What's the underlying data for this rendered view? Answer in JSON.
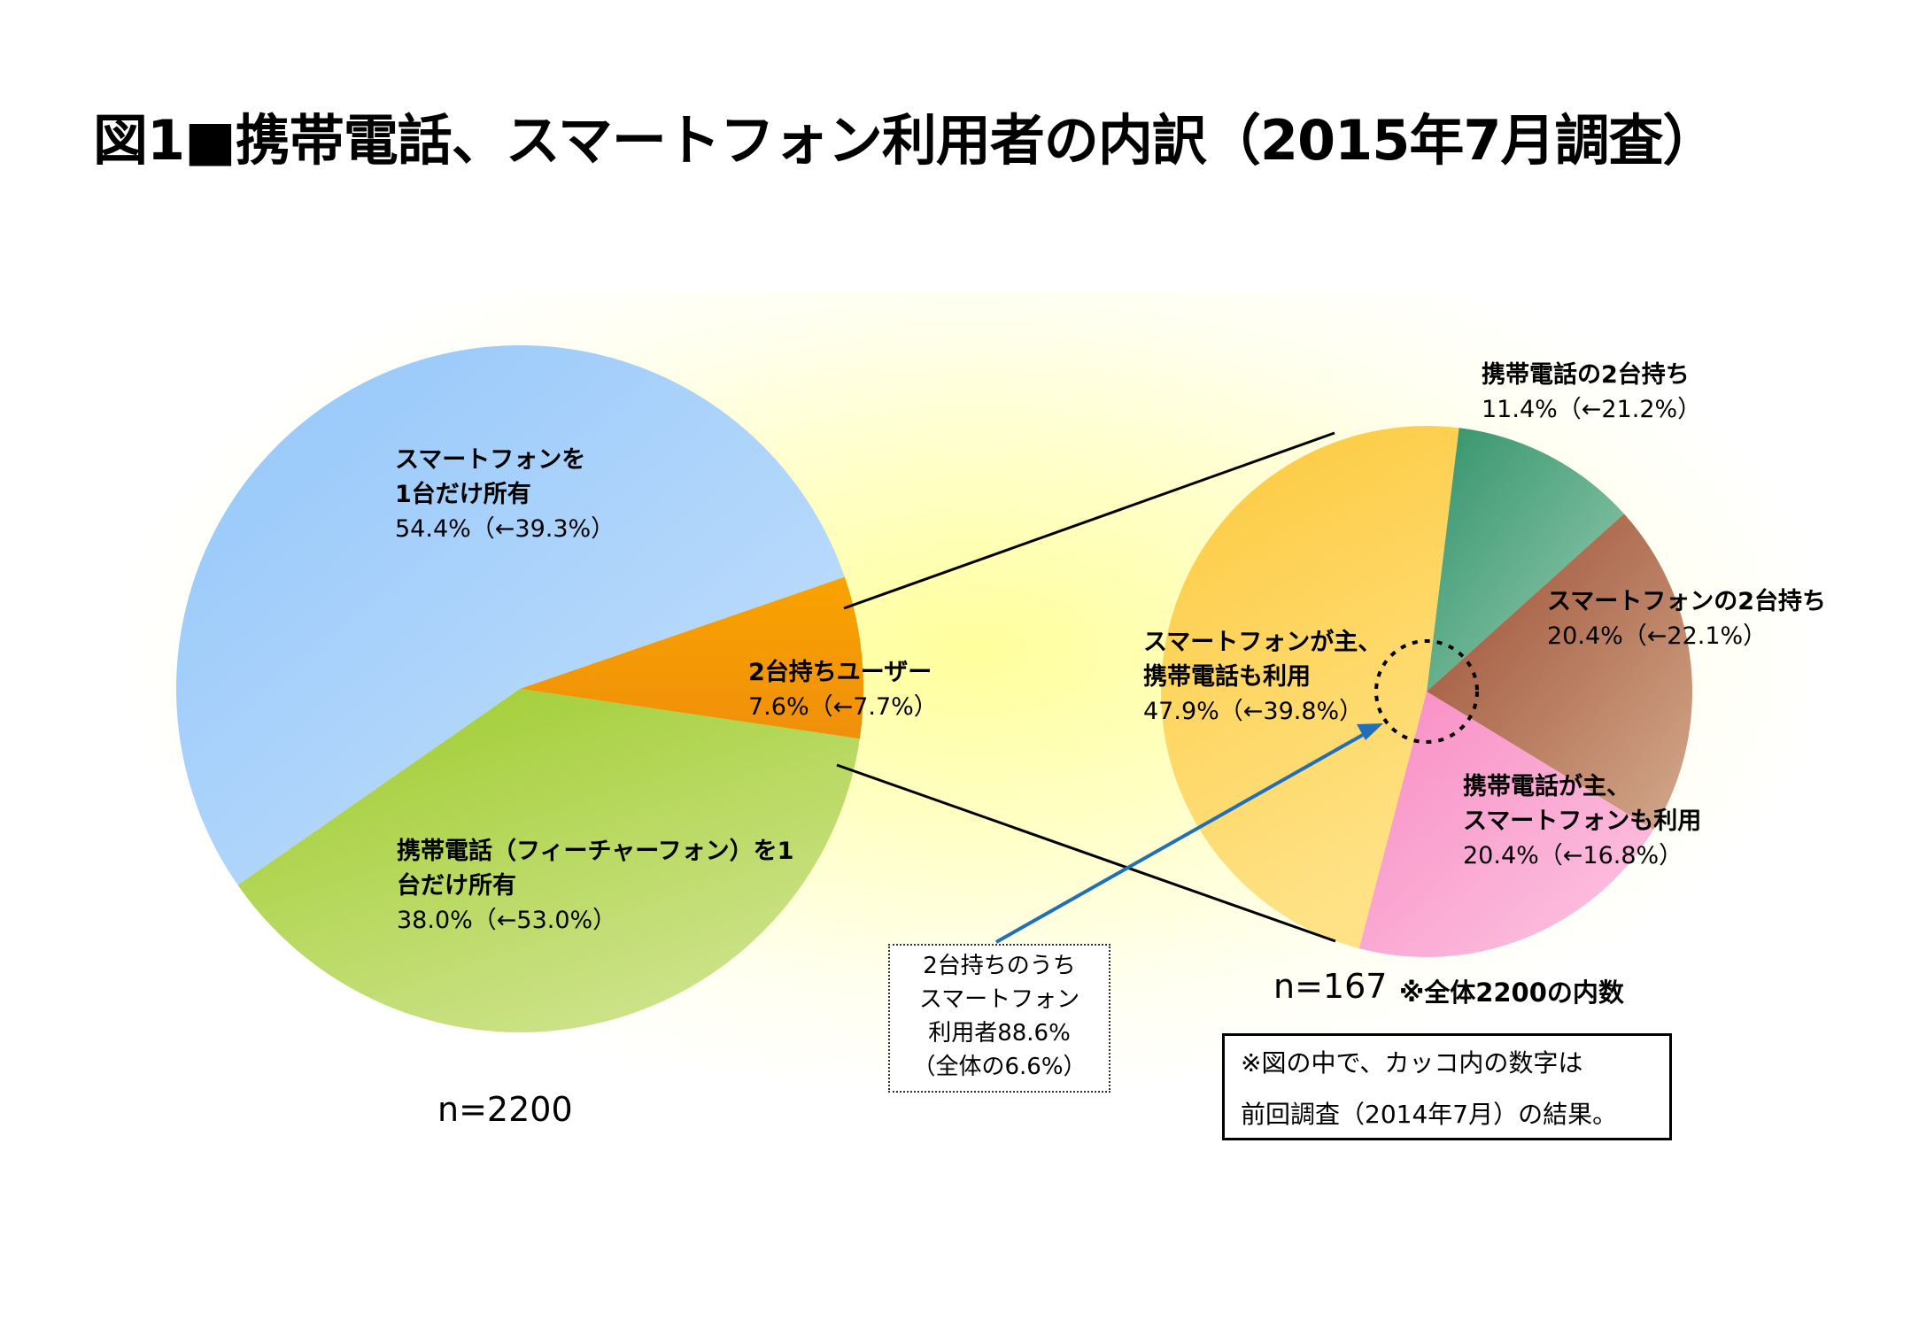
{
  "title": "図1■携帯電話、スマートフォン利用者の内訳（2015年7月調査）",
  "chart_data": [
    {
      "type": "pie",
      "n_label": "n=2200",
      "slices": [
        {
          "name": "スマートフォンを1台だけ所有",
          "label_lines": [
            "スマートフォンを",
            "1台だけ所有"
          ],
          "value": 54.4,
          "value_text": "54.4%（←39.3%）",
          "previous": 39.3,
          "color": "#a9d1fb"
        },
        {
          "name": "2台持ちユーザー",
          "label_lines": [
            "2台持ちユーザー"
          ],
          "value": 7.6,
          "value_text": "7.6%（←7.7%）",
          "previous": 7.7,
          "color": "#f39a0b"
        },
        {
          "name": "携帯電話（フィーチャーフォン）を1台だけ所有",
          "label_lines": [
            "携帯電話（フィーチャーフォン）を1",
            "台だけ所有"
          ],
          "value": 38.0,
          "value_text": "38.0%（←53.0%）",
          "previous": 53.0,
          "color": "#b2d454"
        }
      ]
    },
    {
      "type": "pie",
      "n_label": "n=167",
      "note": "※全体2200の内数",
      "slices": [
        {
          "name": "携帯電話の2台持ち",
          "label_lines": [
            "携帯電話の2台持ち"
          ],
          "value": 11.4,
          "value_text": "11.4%（←21.2%）",
          "previous": 21.2,
          "color": "#5aa883"
        },
        {
          "name": "スマートフォンの2台持ち",
          "label_lines": [
            "スマートフォンの2台持ち"
          ],
          "value": 20.4,
          "value_text": "20.4%（←22.1%）",
          "previous": 22.1,
          "color": "#b66f52"
        },
        {
          "name": "携帯電話が主、スマートフォンも利用",
          "label_lines": [
            "携帯電話が主、",
            "スマートフォンも利用"
          ],
          "value": 20.4,
          "value_text": "20.4%（←16.8%）",
          "previous": 16.8,
          "color": "#fba6d1"
        },
        {
          "name": "スマートフォンが主、携帯電話も利用",
          "label_lines": [
            "スマートフォンが主、",
            "携帯電話も利用"
          ],
          "value": 47.9,
          "value_text": "47.9%（←39.8%）",
          "previous": 39.8,
          "color": "#fdd35c"
        }
      ]
    }
  ],
  "callout": {
    "lines": [
      "2台持ちのうち",
      "スマートフォン",
      "利用者88.6%",
      "（全体の6.6%）"
    ]
  },
  "footnote": {
    "lines": [
      "※図の中で、カッコ内の数字は",
      "前回調査（2014年7月）の結果。"
    ]
  }
}
